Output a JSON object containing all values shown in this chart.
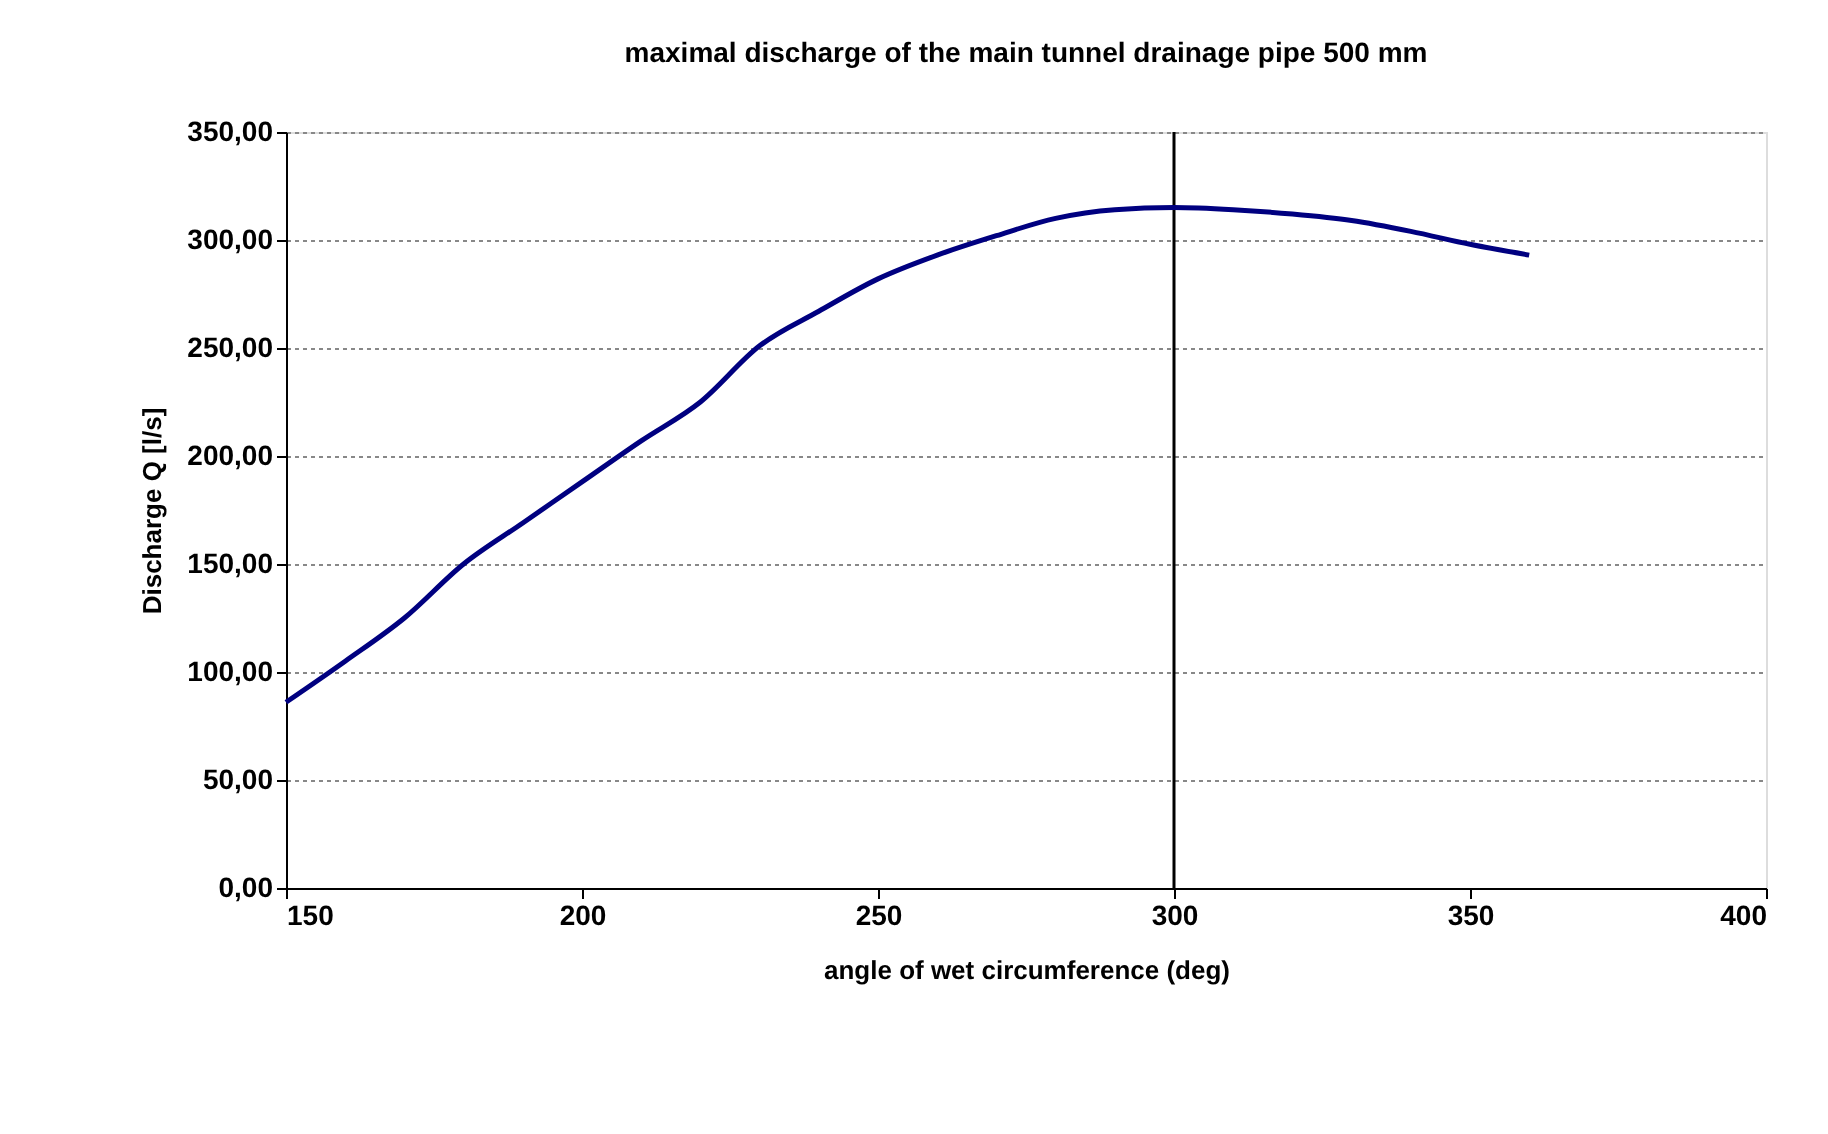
{
  "chart_data": {
    "type": "line",
    "title": "maximal discharge of the main tunnel drainage pipe 500 mm",
    "xlabel": "angle of wet circumference (deg)",
    "ylabel": "Discharge Q [l/s]",
    "x": [
      150,
      160,
      170,
      180,
      190,
      200,
      210,
      220,
      230,
      240,
      250,
      260,
      270,
      280,
      290,
      300,
      310,
      320,
      330,
      340,
      350,
      360
    ],
    "series": [
      {
        "color": "#000080",
        "values": [
          86,
          105,
          125,
          150,
          169,
          188,
          207,
          225,
          251,
          267,
          282,
          293,
          302,
          310,
          314,
          315,
          314,
          312,
          309,
          304,
          298,
          293
        ]
      }
    ],
    "xlim": [
      150,
      400
    ],
    "xticks": [
      150,
      200,
      250,
      300,
      350,
      400
    ],
    "ylim": [
      0,
      350
    ],
    "yticks": [
      {
        "value": 0,
        "label": "0,00"
      },
      {
        "value": 50,
        "label": "50,00"
      },
      {
        "value": 100,
        "label": "100,00"
      },
      {
        "value": 150,
        "label": "150,00"
      },
      {
        "value": 200,
        "label": "200,00"
      },
      {
        "value": 250,
        "label": "250,00"
      },
      {
        "value": 300,
        "label": "300,00"
      },
      {
        "value": 350,
        "label": "350,00"
      }
    ],
    "ref_lines": [
      {
        "axis": "x",
        "value": 300,
        "color": "#000000"
      }
    ],
    "grid": "y",
    "marker": "none",
    "line_style": "solid"
  }
}
